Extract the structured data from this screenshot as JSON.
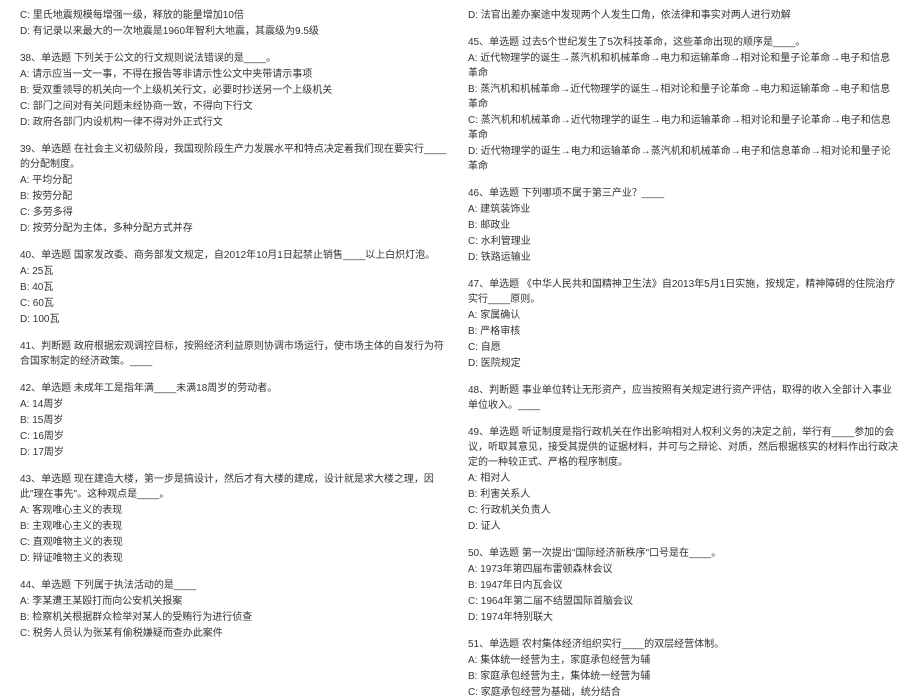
{
  "left": [
    {
      "lines": [
        "C: 里氏地震规模每增强一级，释放的能量增加10倍",
        "D: 有记录以来最大的一次地震是1960年智利大地震，其震级为9.5级"
      ]
    },
    {
      "lines": [
        "38、单选题   下列关于公文的行文规则说法错误的是____。",
        "A: 请示应当一文一事，不得在报告等非请示性公文中夹带请示事项",
        "B: 受双重领导的机关向一个上级机关行文，必要时抄送另一个上级机关",
        "C: 部门之间对有关问题未经协商一致，不得向下行文",
        "D: 政府各部门内设机构一律不得对外正式行文"
      ]
    },
    {
      "lines": [
        "39、单选题   在社会主义初级阶段，我国现阶段生产力发展水平和特点决定着我们现在要实行____的分配制度。",
        "A: 平均分配",
        "B: 按劳分配",
        "C: 多劳多得",
        "D: 按劳分配为主体，多种分配方式并存"
      ]
    },
    {
      "lines": [
        "40、单选题   国家发改委、商务部发文规定，自2012年10月1日起禁止销售____以上白炽灯泡。",
        "A: 25瓦",
        "B: 40瓦",
        "C: 60瓦",
        "D: 100瓦"
      ]
    },
    {
      "lines": [
        "41、判断题   政府根据宏观调控目标，按照经济利益原则协调市场运行，使市场主体的自发行为符合国家制定的经济政策。____"
      ]
    },
    {
      "lines": [
        "42、单选题   未成年工是指年满____未满18周岁的劳动者。",
        "A: 14周岁",
        "B: 15周岁",
        "C: 16周岁",
        "D: 17周岁"
      ]
    },
    {
      "lines": [
        "43、单选题   现在建造大楼，第一步是搞设计，然后才有大楼的建成，设计就是求大楼之理，因此\"理在事先\"。这种观点是____。",
        "A: 客观唯心主义的表现",
        "B: 主观唯心主义的表现",
        "C: 直观唯物主义的表现",
        "D: 辩证唯物主义的表现"
      ]
    },
    {
      "lines": [
        "44、单选题   下列属于执法活动的是____",
        "A: 李某遭王某殴打而向公安机关报案",
        "B: 检察机关根据群众检举对某人的受贿行为进行侦查",
        "C: 税务人员认为张某有偷税嫌疑而查办此案件"
      ]
    }
  ],
  "right": [
    {
      "lines": [
        "D: 法官出差办案途中发现两个人发生口角，依法律和事实对两人进行劝解"
      ]
    },
    {
      "lines": [
        "45、单选题   过去5个世纪发生了5次科技革命，这些革命出现的顺序是____。",
        "A: 近代物理学的诞生→蒸汽机和机械革命→电力和运输革命→相对论和量子论革命→电子和信息革命",
        "B: 蒸汽机和机械革命→近代物理学的诞生→相对论和量子论革命→电力和运输革命→电子和信息革命",
        "C: 蒸汽机和机械革命→近代物理学的诞生→电力和运输革命→相对论和量子论革命→电子和信息革命",
        "D: 近代物理学的诞生→电力和运输革命→蒸汽机和机械革命→电子和信息革命→相对论和量子论革命"
      ]
    },
    {
      "lines": [
        "46、单选题   下列哪项不属于第三产业？____",
        "A: 建筑装饰业",
        "B: 邮政业",
        "C: 水利管理业",
        "D: 铁路运输业"
      ]
    },
    {
      "lines": [
        "47、单选题   《中华人民共和国精神卫生法》自2013年5月1日实施，按规定，精神障碍的住院治疗实行____原则。",
        "A: 家属确认",
        "B: 严格审核",
        "C: 自愿",
        "D: 医院规定"
      ]
    },
    {
      "lines": [
        "48、判断题   事业单位转让无形资产，应当按照有关规定进行资产评估，取得的收入全部计入事业单位收入。____"
      ]
    },
    {
      "lines": [
        "49、单选题   听证制度是指行政机关在作出影响相对人权利义务的决定之前，举行有____参加的会议，听取其意见，接受其提供的证据材料，并可与之辩论、对质，然后根据核实的材料作出行政决定的一种较正式、严格的程序制度。",
        "A: 相对人",
        "B: 利害关系人",
        "C: 行政机关负责人",
        "D: 证人"
      ]
    },
    {
      "lines": [
        "50、单选题   第一次提出\"国际经济新秩序\"口号是在____。",
        "A: 1973年第四届布雷顿森林会议",
        "B: 1947年日内瓦会议",
        "C: 1964年第二届不结盟国际首脑会议",
        "D: 1974年特别联大"
      ]
    },
    {
      "lines": [
        "51、单选题   农村集体经济组织实行____的双层经营体制。",
        "A: 集体统一经营为主，家庭承包经营为辅",
        "B: 家庭承包经营为主，集体统一经营为辅",
        "C: 家庭承包经营为基础，统分结合"
      ]
    }
  ]
}
